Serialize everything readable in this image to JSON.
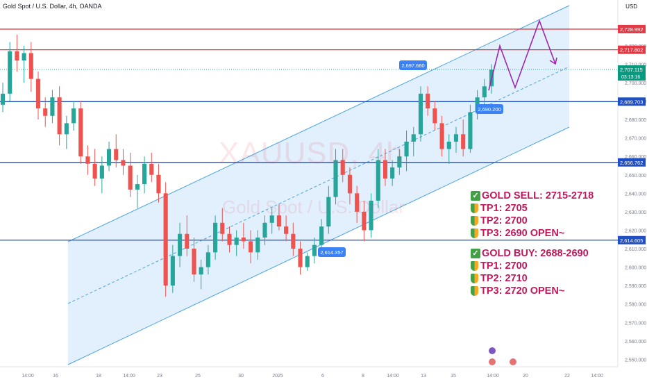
{
  "header": {
    "title": "Gold Spot / U.S. Dollar, 4h, OANDA",
    "currency": "USD"
  },
  "watermark": {
    "symbol": "XAUUSD, 4h",
    "name": "Gold Spot / U.S. Dollar"
  },
  "chart_data": {
    "type": "candlestick",
    "symbol": "XAUUSD",
    "timeframe": "4h",
    "ylim": [
      2546,
      2738
    ],
    "y_ticks": [
      2550,
      2560,
      2570,
      2580,
      2590,
      2600,
      2610,
      2620,
      2630,
      2640,
      2650,
      2660,
      2670,
      2680,
      2690,
      2700,
      2710,
      2720
    ],
    "x_ticks": [
      "14:00",
      "16",
      "18",
      "14:00",
      "23",
      "25",
      "30",
      "2025",
      "6",
      "8",
      "14:00",
      "13",
      "15",
      "14:00",
      "20",
      "22",
      "14:00"
    ],
    "candles_ohlc": [
      [
        2688,
        2700,
        2684,
        2694
      ],
      [
        2694,
        2722,
        2690,
        2717
      ],
      [
        2717,
        2726,
        2706,
        2712
      ],
      [
        2712,
        2720,
        2700,
        2716
      ],
      [
        2716,
        2722,
        2695,
        2702
      ],
      [
        2702,
        2706,
        2680,
        2686
      ],
      [
        2686,
        2692,
        2676,
        2682
      ],
      [
        2682,
        2696,
        2678,
        2692
      ],
      [
        2692,
        2698,
        2666,
        2672
      ],
      [
        2672,
        2682,
        2664,
        2678
      ],
      [
        2678,
        2690,
        2674,
        2686
      ],
      [
        2686,
        2690,
        2656,
        2660
      ],
      [
        2660,
        2666,
        2650,
        2656
      ],
      [
        2656,
        2664,
        2644,
        2648
      ],
      [
        2648,
        2660,
        2640,
        2655
      ],
      [
        2655,
        2668,
        2652,
        2664
      ],
      [
        2664,
        2672,
        2654,
        2658
      ],
      [
        2658,
        2664,
        2650,
        2655
      ],
      [
        2655,
        2662,
        2638,
        2642
      ],
      [
        2642,
        2650,
        2632,
        2645
      ],
      [
        2645,
        2660,
        2640,
        2656
      ],
      [
        2656,
        2662,
        2646,
        2650
      ],
      [
        2650,
        2656,
        2635,
        2640
      ],
      [
        2640,
        2646,
        2584,
        2590
      ],
      [
        2590,
        2612,
        2586,
        2606
      ],
      [
        2606,
        2624,
        2600,
        2618
      ],
      [
        2618,
        2628,
        2606,
        2610
      ],
      [
        2610,
        2616,
        2592,
        2596
      ],
      [
        2596,
        2604,
        2588,
        2600
      ],
      [
        2600,
        2612,
        2596,
        2608
      ],
      [
        2608,
        2628,
        2604,
        2624
      ],
      [
        2624,
        2632,
        2614,
        2618
      ],
      [
        2618,
        2622,
        2608,
        2612
      ],
      [
        2612,
        2620,
        2606,
        2616
      ],
      [
        2616,
        2624,
        2610,
        2614
      ],
      [
        2614,
        2620,
        2602,
        2608
      ],
      [
        2608,
        2620,
        2604,
        2616
      ],
      [
        2616,
        2628,
        2612,
        2624
      ],
      [
        2624,
        2632,
        2618,
        2628
      ],
      [
        2628,
        2634,
        2620,
        2622
      ],
      [
        2622,
        2628,
        2614,
        2618
      ],
      [
        2618,
        2624,
        2606,
        2610
      ],
      [
        2610,
        2614,
        2596,
        2600
      ],
      [
        2600,
        2608,
        2598,
        2606
      ],
      [
        2606,
        2616,
        2602,
        2612
      ],
      [
        2612,
        2626,
        2608,
        2622
      ],
      [
        2622,
        2644,
        2618,
        2638
      ],
      [
        2638,
        2664,
        2634,
        2658
      ],
      [
        2658,
        2664,
        2646,
        2650
      ],
      [
        2650,
        2654,
        2634,
        2640
      ],
      [
        2640,
        2644,
        2624,
        2630
      ],
      [
        2630,
        2636,
        2614,
        2620
      ],
      [
        2620,
        2640,
        2616,
        2636
      ],
      [
        2636,
        2664,
        2632,
        2658
      ],
      [
        2658,
        2664,
        2644,
        2648
      ],
      [
        2648,
        2658,
        2644,
        2654
      ],
      [
        2654,
        2664,
        2650,
        2660
      ],
      [
        2660,
        2674,
        2652,
        2668
      ],
      [
        2668,
        2676,
        2660,
        2672
      ],
      [
        2672,
        2698,
        2668,
        2694
      ],
      [
        2694,
        2698,
        2682,
        2686
      ],
      [
        2686,
        2690,
        2674,
        2678
      ],
      [
        2678,
        2682,
        2660,
        2664
      ],
      [
        2664,
        2672,
        2656,
        2668
      ],
      [
        2668,
        2676,
        2662,
        2672
      ],
      [
        2672,
        2680,
        2660,
        2664
      ],
      [
        2664,
        2688,
        2662,
        2684
      ],
      [
        2684,
        2696,
        2680,
        2692
      ],
      [
        2692,
        2702,
        2688,
        2698
      ],
      [
        2698,
        2710,
        2694,
        2707
      ]
    ],
    "horizontal_levels": [
      {
        "price": 2728.992,
        "label": "2,728.992",
        "color": "#e53945"
      },
      {
        "price": 2717.802,
        "label": "2,717.802",
        "color": "#e53945"
      },
      {
        "price": 2689.703,
        "label": "2,689.703",
        "color": "#1e4fc4"
      },
      {
        "price": 2656.762,
        "label": "2,656.762",
        "color": "#1e4fc4"
      },
      {
        "price": 2614.605,
        "label": "2,614.605",
        "color": "#1e4fc4"
      }
    ],
    "current_price": {
      "price": 2707.115,
      "label": "2,707.115",
      "countdown": "03:13:16",
      "color": "#089981"
    },
    "price_callouts": [
      {
        "label": "2,697.660",
        "price": 2697.66
      },
      {
        "label": "2,690.200",
        "price": 2690.2
      },
      {
        "label": "2,614.357",
        "price": 2614.357
      }
    ],
    "channel": {
      "color": "#4aa3df",
      "fill": "#d6e8fb"
    },
    "projection": {
      "color": "#9c27b0",
      "path_prices": [
        2707,
        2692,
        2728.992,
        2707
      ]
    }
  },
  "signals": {
    "sell": {
      "title": "GOLD SELL: 2715-2718",
      "tp1": "TP1: 2705",
      "tp2": "TP2: 2700",
      "tp3": "TP3: 2690 OPEN~"
    },
    "buy": {
      "title": "GOLD BUY: 2688-2690",
      "tp1": "TP1: 2700",
      "tp2": "TP2: 2710",
      "tp3": "TP3: 2720 OPEN~"
    }
  },
  "colors": {
    "up": "#26a69a",
    "down": "#ef5350",
    "grid": "#f0f3fa",
    "axis_text": "#787b86"
  }
}
